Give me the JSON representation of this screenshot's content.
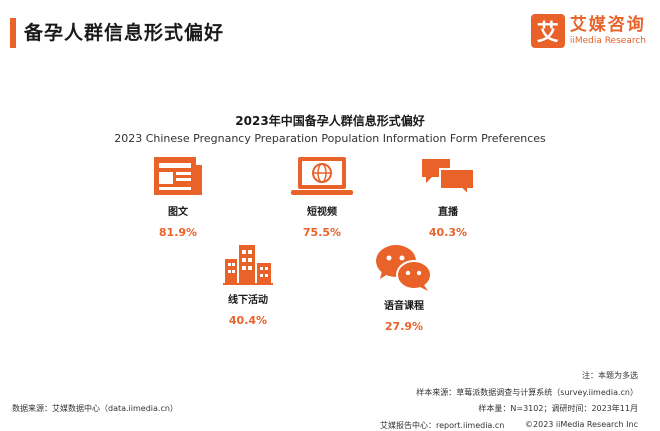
{
  "header": {
    "title": "备孕人群信息形式偏好"
  },
  "brand": {
    "logo_char": "艾",
    "name_cn": "艾媒咨询",
    "name_en": "iiMedia Research"
  },
  "chart_data": {
    "type": "table",
    "title": "2023年中国备孕人群信息形式偏好",
    "subtitle": "2023 Chinese Pregnancy Preparation Population Information Form Preferences",
    "categories": [
      "图文",
      "短视频",
      "直播",
      "线下活动",
      "语音课程"
    ],
    "values": [
      81.9,
      75.5,
      40.3,
      40.4,
      27.9
    ],
    "value_labels": [
      "81.9%",
      "75.5%",
      "40.3%",
      "40.4%",
      "27.9%"
    ],
    "icons": [
      "newspaper-icon",
      "laptop-globe-icon",
      "chat-bubbles-icon",
      "buildings-icon",
      "wechat-icon"
    ],
    "accent_color": "#e8622a"
  },
  "footer": {
    "note": "注：本题为多选",
    "sample_source": "样本来源：草莓派数据调查与计算系统（survey.iimedia.cn）",
    "sample_size": "样本量：N=3102；调研时间：2023年11月",
    "data_source": "数据来源：艾媒数据中心（data.iimedia.cn）",
    "report_center": "艾媒报告中心：report.iimedia.cn",
    "copyright": "©2023  iiMedia Research  Inc"
  }
}
